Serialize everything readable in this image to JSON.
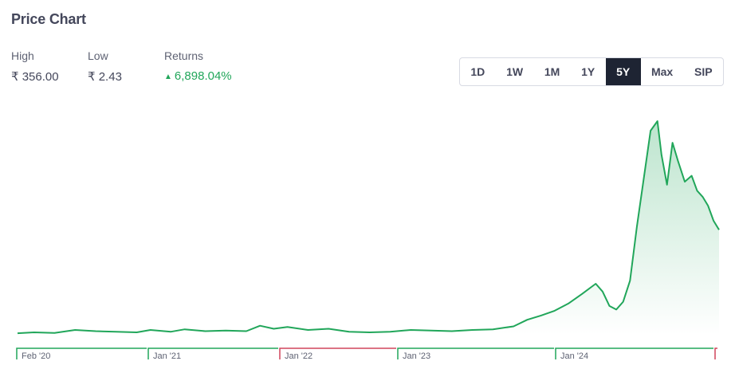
{
  "header": {
    "title": "Price Chart"
  },
  "stats": {
    "high": {
      "label": "High",
      "value": "₹ 356.00"
    },
    "low": {
      "label": "Low",
      "value": "₹ 2.43"
    },
    "returns": {
      "label": "Returns",
      "value": "6,898.04%",
      "direction": "up"
    }
  },
  "ranges": [
    {
      "label": "1D",
      "active": false
    },
    {
      "label": "1W",
      "active": false
    },
    {
      "label": "1M",
      "active": false
    },
    {
      "label": "1Y",
      "active": false
    },
    {
      "label": "5Y",
      "active": true
    },
    {
      "label": "Max",
      "active": false
    },
    {
      "label": "SIP",
      "active": false
    }
  ],
  "colors": {
    "line": "#21a65a",
    "positive": "#21a65a",
    "negative": "#d0455b",
    "active_bg": "#1e2433"
  },
  "chart_data": {
    "type": "area",
    "title": "",
    "xlabel": "",
    "ylabel": "",
    "ylim": [
      0,
      356
    ],
    "grid": false,
    "x_ticks": [
      "Feb '20",
      "Jan '21",
      "Jan '22",
      "Jan '23",
      "Jan '24"
    ],
    "period_segments": [
      {
        "label": "Feb '20",
        "trend": "up"
      },
      {
        "label": "Jan '21",
        "trend": "up"
      },
      {
        "label": "Jan '22",
        "trend": "down"
      },
      {
        "label": "Jan '23",
        "trend": "up"
      },
      {
        "label": "Jan '24",
        "trend": "up"
      },
      {
        "label": "",
        "trend": "down"
      }
    ],
    "series": [
      {
        "x": [
          2020.08,
          2020.2,
          2020.35,
          2020.5,
          2020.65,
          2020.8,
          2020.95,
          2021.05,
          2021.2,
          2021.3,
          2021.45,
          2021.6,
          2021.75,
          2021.85,
          2021.95,
          2022.05,
          2022.2,
          2022.35,
          2022.5,
          2022.65,
          2022.8,
          2022.95,
          2023.1,
          2023.25,
          2023.4,
          2023.55,
          2023.7,
          2023.8,
          2023.9,
          2024.0,
          2024.1,
          2024.2,
          2024.3,
          2024.35,
          2024.4,
          2024.45,
          2024.5,
          2024.55,
          2024.6,
          2024.65,
          2024.7,
          2024.75,
          2024.78,
          2024.82,
          2024.86,
          2024.9,
          2024.95,
          2025.0,
          2025.04,
          2025.08,
          2025.12,
          2025.16,
          2025.2
        ],
        "y": [
          2.5,
          4,
          3,
          8,
          6,
          5,
          4,
          8,
          5,
          9,
          6,
          7,
          6,
          15,
          10,
          13,
          8,
          10,
          5,
          4,
          5,
          8,
          7,
          6,
          8,
          9,
          14,
          25,
          32,
          40,
          52,
          68,
          85,
          72,
          48,
          42,
          55,
          90,
          180,
          260,
          340,
          356,
          300,
          250,
          320,
          290,
          255,
          265,
          240,
          230,
          215,
          190,
          175
        ]
      }
    ]
  }
}
